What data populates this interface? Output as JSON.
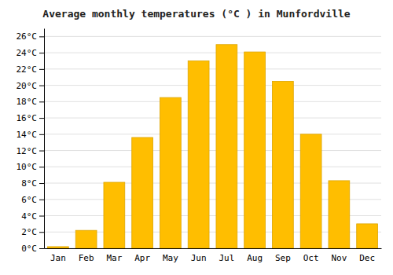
{
  "chart_data": {
    "type": "bar",
    "title": "Average monthly temperatures (°C ) in Munfordville",
    "categories": [
      "Jan",
      "Feb",
      "Mar",
      "Apr",
      "May",
      "Jun",
      "Jul",
      "Aug",
      "Sep",
      "Oct",
      "Nov",
      "Dec"
    ],
    "values": [
      0.2,
      2.2,
      8.1,
      13.6,
      18.5,
      23.0,
      25.0,
      24.1,
      20.5,
      14.0,
      8.3,
      3.0
    ],
    "color": "#FFBE00",
    "ylim": [
      0,
      27
    ],
    "yticks": [
      {
        "value": 0,
        "label": "0°C"
      },
      {
        "value": 2,
        "label": "2°C"
      },
      {
        "value": 4,
        "label": "4°C"
      },
      {
        "value": 6,
        "label": "6°C"
      },
      {
        "value": 8,
        "label": "8°C"
      },
      {
        "value": 10,
        "label": "10°C"
      },
      {
        "value": 12,
        "label": "12°C"
      },
      {
        "value": 14,
        "label": "14°C"
      },
      {
        "value": 16,
        "label": "16°C"
      },
      {
        "value": 18,
        "label": "18°C"
      },
      {
        "value": 20,
        "label": "20°C"
      },
      {
        "value": 22,
        "label": "22°C"
      },
      {
        "value": 24,
        "label": "24°C"
      },
      {
        "value": 26,
        "label": "26°C"
      }
    ],
    "grid": true
  }
}
